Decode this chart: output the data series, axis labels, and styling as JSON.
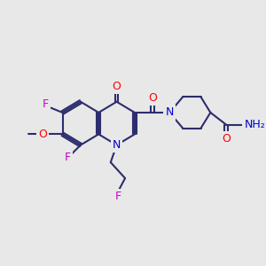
{
  "background_color": "#e8e8e8",
  "bond_color": "#2d2d6e",
  "bond_width": 1.5,
  "atom_colors": {
    "F": "#cc00cc",
    "O": "#ff0000",
    "N": "#0000cc",
    "C": "#2d2d6e",
    "H": "#5a9a8a"
  },
  "font_size": 9,
  "figsize": [
    3.0,
    3.0
  ]
}
